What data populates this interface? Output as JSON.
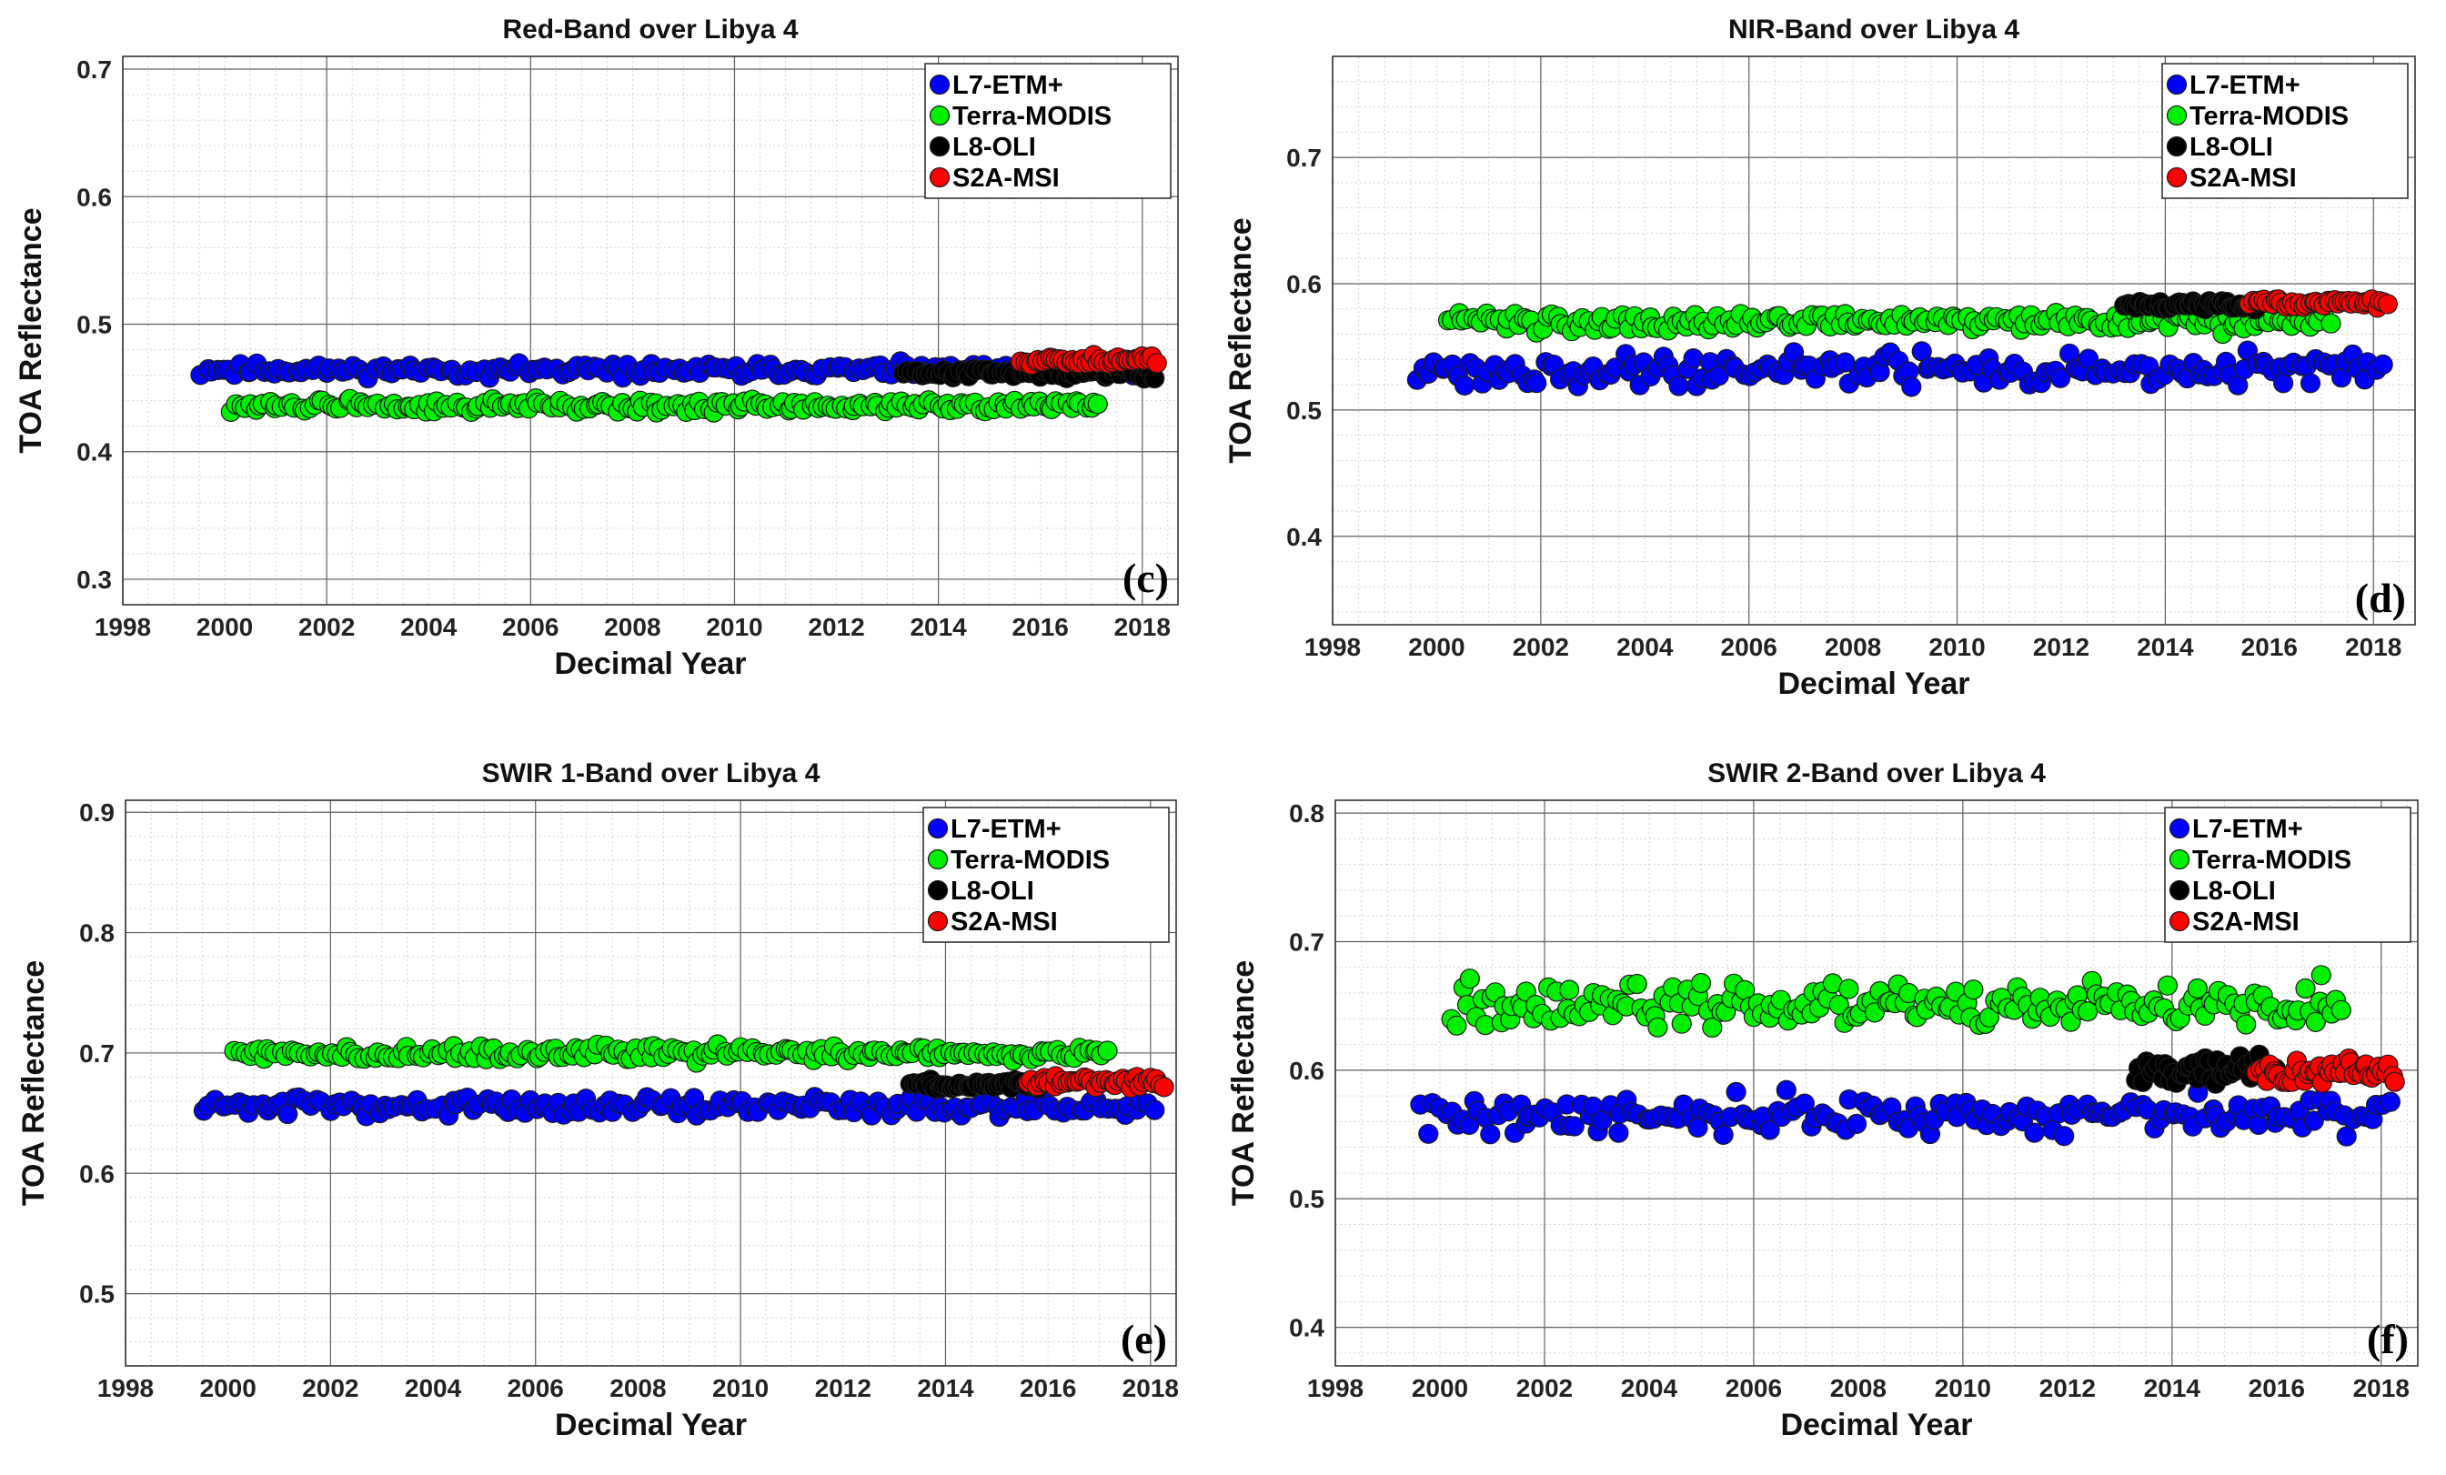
{
  "figure": {
    "colors": {
      "L7-ETM+": "#0000ff",
      "Terra-MODIS": "#00ee00",
      "L8-OLI": "#000000",
      "S2A-MSI": "#ff0000"
    }
  },
  "chart_data": [
    {
      "type": "scatter",
      "title": "Red-Band over Libya 4",
      "xlabel": "Decimal Year",
      "ylabel": "TOA Reflectance",
      "panel_letter": "(c)",
      "xlim": [
        1998,
        2018.7
      ],
      "ylim": [
        0.28,
        0.71
      ],
      "xticks": [
        1998,
        2000,
        2002,
        2004,
        2006,
        2008,
        2010,
        2012,
        2014,
        2016,
        2018
      ],
      "yticks": [
        0.3,
        0.4,
        0.5,
        0.6,
        0.7
      ],
      "legend_position": "top-right",
      "series": [
        {
          "name": "L7-ETM+",
          "x_range": [
            1999.5,
            2018.2
          ],
          "mean": 0.464,
          "spread": 0.004,
          "n": 170,
          "seed": 11
        },
        {
          "name": "Terra-MODIS",
          "x_range": [
            2000.1,
            2017.2
          ],
          "mean": 0.436,
          "spread": 0.004,
          "n": 190,
          "seed": 12
        },
        {
          "name": "L8-OLI",
          "x_range": [
            2013.3,
            2018.3
          ],
          "mean": 0.462,
          "spread": 0.003,
          "n": 60,
          "seed": 13
        },
        {
          "name": "S2A-MSI",
          "x_range": [
            2015.6,
            2018.3
          ],
          "mean": 0.472,
          "spread": 0.003,
          "n": 40,
          "seed": 14
        }
      ]
    },
    {
      "type": "scatter",
      "title": "NIR-Band over Libya 4",
      "xlabel": "Decimal Year",
      "ylabel": "TOA Reflectance",
      "panel_letter": "(d)",
      "xlim": [
        1998,
        2018.8
      ],
      "ylim": [
        0.33,
        0.78
      ],
      "xticks": [
        1998,
        2000,
        2002,
        2004,
        2006,
        2008,
        2010,
        2012,
        2014,
        2016,
        2018
      ],
      "yticks": [
        0.4,
        0.5,
        0.6,
        0.7
      ],
      "legend_position": "top-right",
      "series": [
        {
          "name": "L7-ETM+",
          "x_range": [
            1999.6,
            2018.2
          ],
          "mean": 0.532,
          "spread": 0.01,
          "n": 170,
          "seed": 21
        },
        {
          "name": "Terra-MODIS",
          "x_range": [
            2000.2,
            2017.2
          ],
          "mean": 0.57,
          "spread": 0.006,
          "n": 190,
          "seed": 22
        },
        {
          "name": "L8-OLI",
          "x_range": [
            2013.2,
            2015.8
          ],
          "mean": 0.583,
          "spread": 0.003,
          "n": 45,
          "seed": 23
        },
        {
          "name": "S2A-MSI",
          "x_range": [
            2015.6,
            2018.3
          ],
          "mean": 0.585,
          "spread": 0.003,
          "n": 40,
          "seed": 24
        }
      ]
    },
    {
      "type": "scatter",
      "title": "SWIR 1-Band over Libya 4",
      "xlabel": "Decimal Year",
      "ylabel": "TOA Reflectance",
      "panel_letter": "(e)",
      "xlim": [
        1998,
        2018.5
      ],
      "ylim": [
        0.44,
        0.91
      ],
      "xticks": [
        1998,
        2000,
        2002,
        2004,
        2006,
        2008,
        2010,
        2012,
        2014,
        2016,
        2018
      ],
      "yticks": [
        0.5,
        0.6,
        0.7,
        0.8,
        0.9
      ],
      "legend_position": "top-right",
      "series": [
        {
          "name": "L7-ETM+",
          "x_range": [
            1999.5,
            2018.1
          ],
          "mean": 0.656,
          "spread": 0.006,
          "n": 170,
          "seed": 31
        },
        {
          "name": "Terra-MODIS",
          "x_range": [
            2000.1,
            2017.2
          ],
          "mean": 0.7,
          "spread": 0.005,
          "n": 190,
          "seed": 32
        },
        {
          "name": "L8-OLI",
          "x_range": [
            2013.3,
            2016.0
          ],
          "mean": 0.674,
          "spread": 0.003,
          "n": 45,
          "seed": 33
        },
        {
          "name": "S2A-MSI",
          "x_range": [
            2015.6,
            2018.3
          ],
          "mean": 0.676,
          "spread": 0.004,
          "n": 40,
          "seed": 34
        }
      ]
    },
    {
      "type": "scatter",
      "title": "SWIR 2-Band over Libya 4",
      "xlabel": "Decimal Year",
      "ylabel": "TOA Reflectance",
      "panel_letter": "(f)",
      "xlim": [
        1998,
        2018.7
      ],
      "ylim": [
        0.37,
        0.81
      ],
      "xticks": [
        1998,
        2000,
        2002,
        2004,
        2006,
        2008,
        2010,
        2012,
        2014,
        2016,
        2018
      ],
      "yticks": [
        0.4,
        0.5,
        0.6,
        0.7,
        0.8
      ],
      "legend_position": "top-right",
      "series": [
        {
          "name": "L7-ETM+",
          "x_range": [
            1999.6,
            2018.2
          ],
          "mean": 0.565,
          "spread": 0.012,
          "n": 170,
          "seed": 41
        },
        {
          "name": "Terra-MODIS",
          "x_range": [
            2000.2,
            2017.3
          ],
          "mean": 0.65,
          "spread": 0.014,
          "n": 190,
          "seed": 42
        },
        {
          "name": "L8-OLI",
          "x_range": [
            2013.3,
            2016.0
          ],
          "mean": 0.6,
          "spread": 0.008,
          "n": 45,
          "seed": 43
        },
        {
          "name": "S2A-MSI",
          "x_range": [
            2015.6,
            2018.3
          ],
          "mean": 0.598,
          "spread": 0.008,
          "n": 45,
          "seed": 44
        }
      ]
    }
  ]
}
